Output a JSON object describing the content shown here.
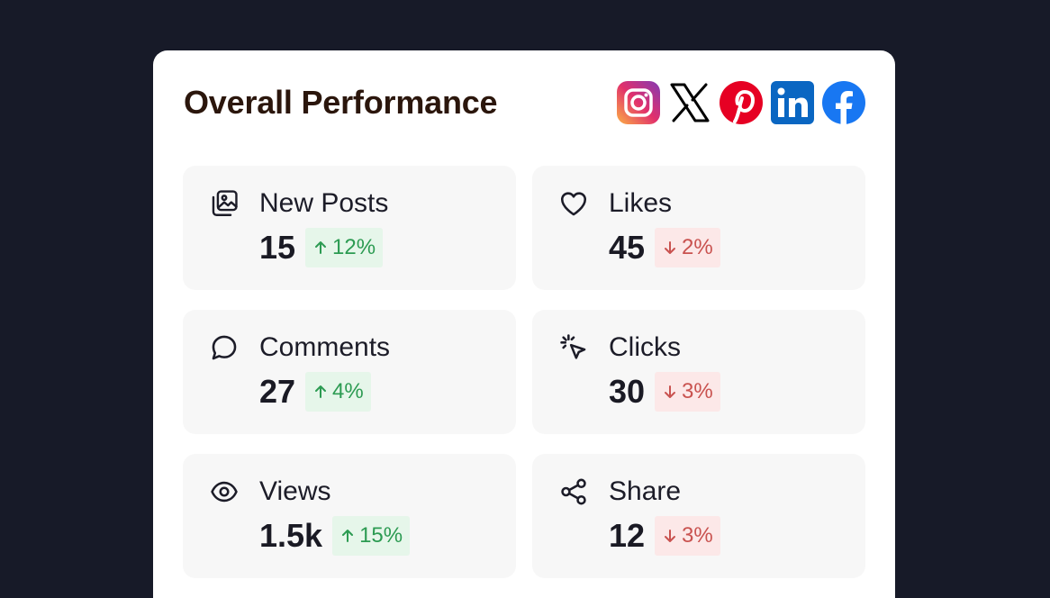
{
  "card": {
    "title": "Overall Performance",
    "socials": [
      {
        "icon": "instagram-icon",
        "color": "#e1306c"
      },
      {
        "icon": "x-icon",
        "color": "#000000"
      },
      {
        "icon": "pinterest-icon",
        "color": "#e60023"
      },
      {
        "icon": "linkedin-icon",
        "color": "#0a66c2"
      },
      {
        "icon": "facebook-icon",
        "color": "#1877f2"
      }
    ]
  },
  "metrics": [
    {
      "label": "New Posts",
      "value": "15",
      "change": "12%",
      "trend": "up",
      "icon": "image-gallery-icon"
    },
    {
      "label": "Likes",
      "value": "45",
      "change": "2%",
      "trend": "down",
      "icon": "heart-icon"
    },
    {
      "label": "Comments",
      "value": "27",
      "change": "4%",
      "trend": "up",
      "icon": "comment-icon"
    },
    {
      "label": "Clicks",
      "value": "30",
      "change": "3%",
      "trend": "down",
      "icon": "cursor-click-icon"
    },
    {
      "label": "Views",
      "value": "1.5k",
      "change": "15%",
      "trend": "up",
      "icon": "eye-icon"
    },
    {
      "label": "Share",
      "value": "12",
      "change": "3%",
      "trend": "down",
      "icon": "share-icon"
    }
  ],
  "colors": {
    "up_text": "#2c9b52",
    "up_bg": "#e6f6ea",
    "down_text": "#c9524f",
    "down_bg": "#fce8e8"
  }
}
